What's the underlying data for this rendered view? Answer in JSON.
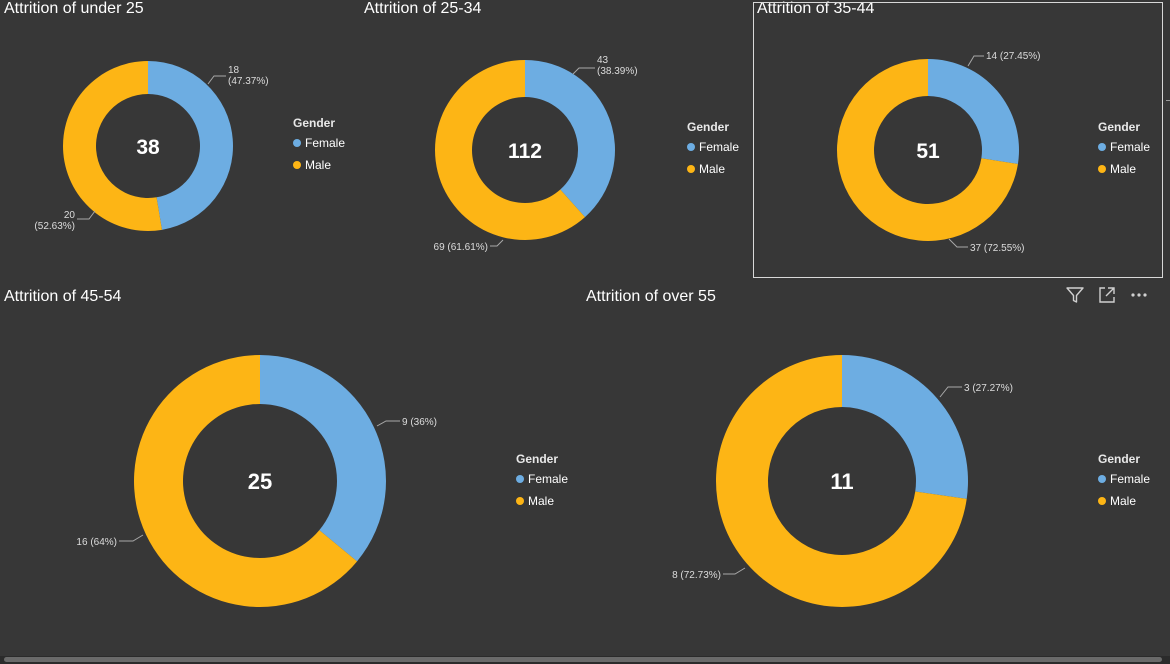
{
  "colors": {
    "female": "#6dade2",
    "male": "#fdb515",
    "background": "#373737",
    "label": "#dcdcdc"
  },
  "legend": {
    "title": "Gender",
    "female_label": "Female",
    "male_label": "Male"
  },
  "toolbar": {
    "filter_icon": "filter-icon",
    "focus_icon": "focus-mode-icon",
    "more_icon": "more-options-icon"
  },
  "chart_data": [
    {
      "type": "pie",
      "title": "Attrition of under 25",
      "total": "38",
      "legend_title": "Gender",
      "categories": [
        "Female",
        "Male"
      ],
      "values": [
        18,
        20
      ],
      "labels": [
        "18 (47.37%)",
        "20 (52.63%)"
      ]
    },
    {
      "type": "pie",
      "title": "Attrition of 25-34",
      "total": "112",
      "legend_title": "Gender",
      "categories": [
        "Female",
        "Male"
      ],
      "values": [
        43,
        69
      ],
      "labels": [
        "43 (38.39%)",
        "69 (61.61%)"
      ]
    },
    {
      "type": "pie",
      "title": "Attrition of 35-44",
      "total": "51",
      "legend_title": "Gender",
      "categories": [
        "Female",
        "Male"
      ],
      "values": [
        14,
        37
      ],
      "labels": [
        "14 (27.45%)",
        "37 (72.55%)"
      ]
    },
    {
      "type": "pie",
      "title": "Attrition of 45-54",
      "total": "25",
      "legend_title": "Gender",
      "categories": [
        "Female",
        "Male"
      ],
      "values": [
        9,
        16
      ],
      "labels": [
        "9 (36%)",
        "16 (64%)"
      ]
    },
    {
      "type": "pie",
      "title": "Attrition of over 55",
      "total": "11",
      "legend_title": "Gender",
      "categories": [
        "Female",
        "Male"
      ],
      "values": [
        3,
        8
      ],
      "labels": [
        "3 (27.27%)",
        "8 (72.73%)"
      ]
    }
  ]
}
